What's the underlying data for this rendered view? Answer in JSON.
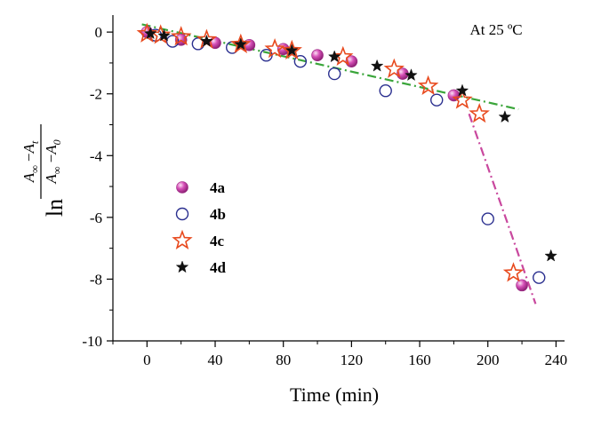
{
  "chart_data": {
    "type": "scatter",
    "title": "",
    "annotation": "At 25 ºC",
    "xlabel": "Time (min)",
    "ylabel": {
      "prefix": "ln",
      "num_a": "A",
      "num_a_sub": "∞",
      "num_minus": " −",
      "num_b": "A",
      "num_b_sub": "t",
      "den_a": "A",
      "den_a_sub": "∞",
      "den_minus": " −",
      "den_b": "A",
      "den_b_sub": "0"
    },
    "xlim": [
      -20,
      245
    ],
    "ylim": [
      -10,
      0.55
    ],
    "xticks": [
      0,
      40,
      80,
      120,
      160,
      200,
      240
    ],
    "yticks": [
      0,
      -2,
      -4,
      -6,
      -8,
      -10
    ],
    "series": [
      {
        "name": "4a",
        "marker": "sphere",
        "color": "#cc3fae",
        "x": [
          0,
          20,
          40,
          60,
          80,
          100,
          120,
          150,
          180,
          220
        ],
        "y": [
          0.0,
          -0.25,
          -0.35,
          -0.42,
          -0.55,
          -0.75,
          -0.95,
          -1.35,
          -2.05,
          -8.2
        ]
      },
      {
        "name": "4b",
        "marker": "open-circle",
        "color": "#2a2f8f",
        "x": [
          5,
          15,
          30,
          50,
          70,
          90,
          110,
          140,
          170,
          200,
          230
        ],
        "y": [
          -0.1,
          -0.3,
          -0.38,
          -0.5,
          -0.75,
          -0.95,
          -1.35,
          -1.9,
          -2.2,
          -6.05,
          -7.95
        ]
      },
      {
        "name": "4c",
        "marker": "open-star",
        "color": "#e8491d",
        "x": [
          0,
          8,
          20,
          35,
          55,
          75,
          85,
          115,
          145,
          165,
          185,
          195,
          215
        ],
        "y": [
          -0.05,
          -0.1,
          -0.15,
          -0.25,
          -0.4,
          -0.55,
          -0.6,
          -0.8,
          -1.2,
          -1.75,
          -2.2,
          -2.65,
          -7.8
        ]
      },
      {
        "name": "4d",
        "marker": "filled-star",
        "color": "#111111",
        "x": [
          2,
          10,
          35,
          55,
          85,
          110,
          135,
          155,
          185,
          210,
          237
        ],
        "y": [
          -0.05,
          -0.12,
          -0.3,
          -0.4,
          -0.6,
          -0.8,
          -1.1,
          -1.4,
          -1.9,
          -2.75,
          -7.25
        ]
      }
    ],
    "fit_lines": [
      {
        "name": "linear-fit",
        "style": "dash-dot",
        "color": "#3aa53a",
        "x": [
          -3,
          218
        ],
        "y": [
          0.25,
          -2.5
        ]
      },
      {
        "name": "steep-fit",
        "style": "dash-dot",
        "color": "#c9489e",
        "x": [
          189,
          211,
          228
        ],
        "y": [
          -2.65,
          -6.1,
          -8.8
        ]
      }
    ]
  }
}
